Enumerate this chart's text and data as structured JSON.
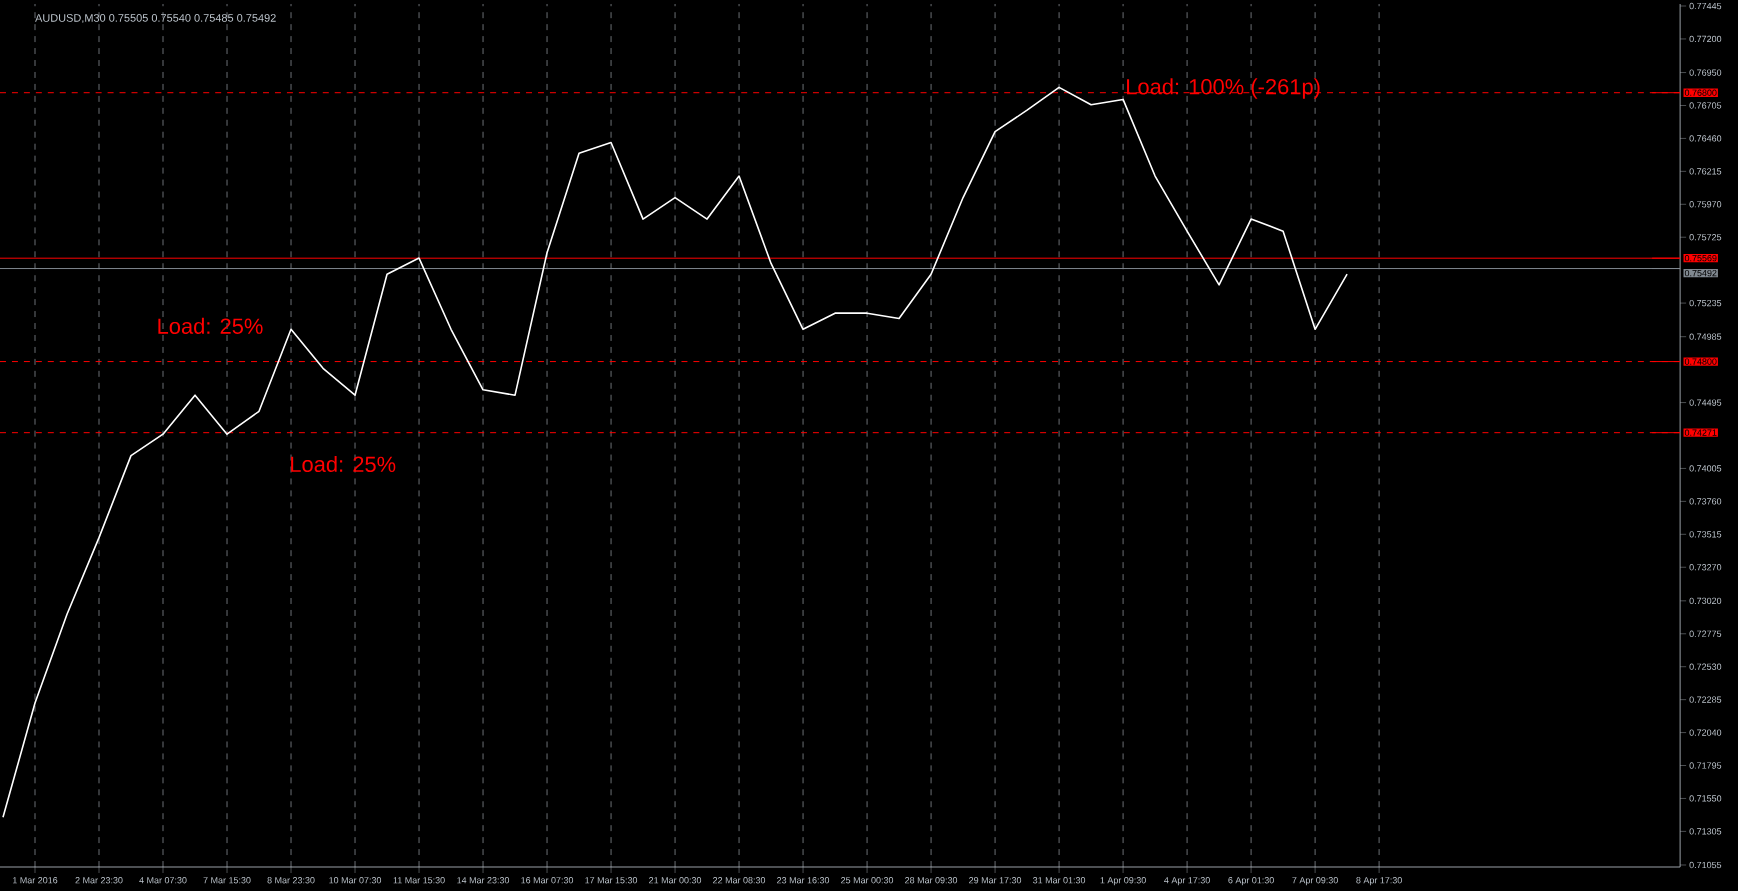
{
  "chart_data": {
    "type": "line",
    "title": "AUDUSD,M30  0.75505 0.75540 0.75485 0.75492",
    "categories": [
      null,
      "1 Mar 2016",
      null,
      "2 Mar 23:30",
      null,
      "4 Mar 07:30",
      null,
      "7 Mar 15:30",
      null,
      "8 Mar 23:30",
      null,
      "10 Mar 07:30",
      null,
      "11 Mar 15:30",
      null,
      "14 Mar 23:30",
      null,
      "16 Mar 07:30",
      null,
      "17 Mar 15:30",
      null,
      "21 Mar 00:30",
      null,
      "22 Mar 08:30",
      null,
      "23 Mar 16:30",
      null,
      "25 Mar 00:30",
      null,
      "28 Mar 09:30",
      null,
      "29 Mar 17:30",
      null,
      "31 Mar 01:30",
      null,
      "1 Apr 09:30",
      null,
      "4 Apr 17:30",
      null,
      "6 Apr 01:30",
      null,
      "7 Apr 09:30",
      null,
      "8 Apr 17:30"
    ],
    "series": [
      {
        "color": "#ffffff",
        "values": [
          0.7141,
          0.7226,
          0.7292,
          0.7349,
          0.741,
          0.7426,
          0.7455,
          0.7426,
          0.7443,
          0.7504,
          0.7475,
          0.7455,
          0.7545,
          0.7557,
          0.7504,
          0.7459,
          0.7455,
          0.7561,
          0.7635,
          0.7643,
          0.7586,
          0.7602,
          0.7586,
          0.7618,
          0.7553,
          0.7504,
          0.7516,
          0.7516,
          0.7512,
          0.7545,
          0.7602,
          0.7651,
          0.7667,
          0.7684,
          0.7671,
          0.7675,
          0.7618,
          0.7577,
          0.7537,
          0.7586,
          0.7577,
          0.7504,
          0.7545,
          null
        ]
      }
    ],
    "ylim": [
      0.7104,
      0.7746
    ],
    "yticks": [
      0.77445,
      {
        "value": 0.772,
        "label": "0.77200"
      },
      {
        "value": 0.7695,
        "label": "0.76950"
      },
      0.76705,
      {
        "value": 0.7646,
        "label": "0.76460"
      },
      0.76215,
      {
        "value": 0.7597,
        "label": "0.75970"
      },
      0.75725,
      0.75235,
      0.74985,
      0.74495,
      0.74005,
      {
        "value": 0.7376,
        "label": "0.73760"
      },
      0.73515,
      {
        "value": 0.7327,
        "label": "0.73270"
      },
      {
        "value": 0.7302,
        "label": "0.73020"
      },
      0.72775,
      {
        "value": 0.7253,
        "label": "0.72530"
      },
      0.72285,
      {
        "value": 0.7204,
        "label": "0.72040"
      },
      0.71795,
      {
        "value": 0.7155,
        "label": "0.71550"
      },
      0.71305,
      0.71055
    ],
    "grid": "x",
    "ref_lines": [
      {
        "axis": "y",
        "value": 0.768,
        "label": "0.76800",
        "color": "#ff0000",
        "line_style": "dashed"
      },
      {
        "axis": "y",
        "value": 0.75569,
        "label": "0.75569",
        "color": "#ff0000",
        "line_style": "solid"
      },
      {
        "axis": "y",
        "value": 0.75492,
        "label": "0.75492",
        "color": "#808890",
        "line_style": "solid"
      },
      {
        "axis": "y",
        "value": 0.748,
        "label": "0.74800",
        "color": "#ff0000",
        "line_style": "dashed"
      },
      {
        "axis": "y",
        "value": 0.74271,
        "label": "0.74271",
        "color": "#ff0000",
        "line_style": "dashed"
      }
    ],
    "annotations": [
      "Load: 25%",
      "Load: 25%",
      "Load: 100% (-261p)"
    ]
  }
}
